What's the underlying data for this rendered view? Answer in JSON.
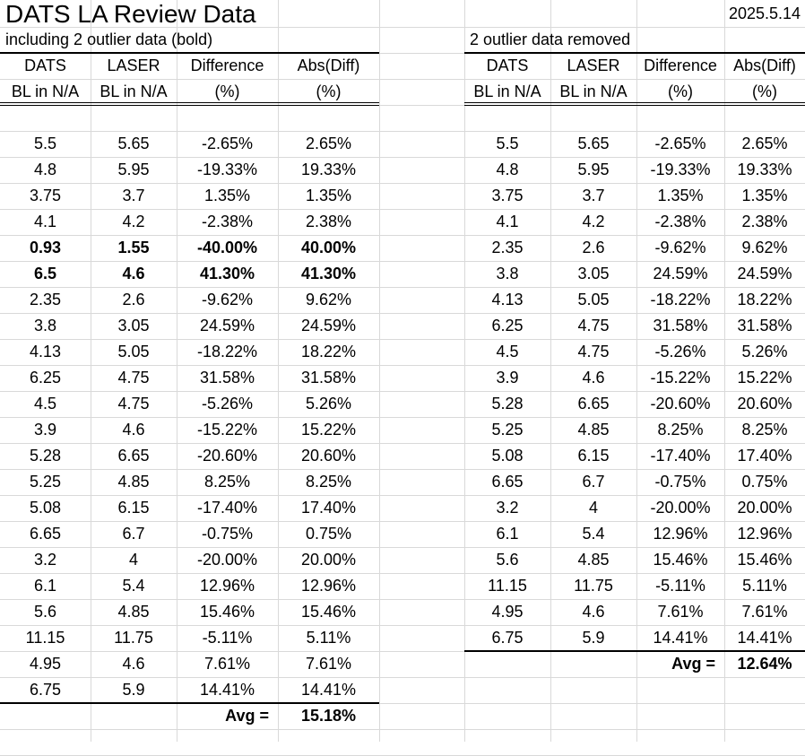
{
  "title": "DATS LA Review Data",
  "date": "2025.5.14",
  "left": {
    "subtitle": "including 2 outlier data (bold)",
    "headers": [
      [
        "DATS",
        "BL in N/A"
      ],
      [
        "LASER",
        "BL in N/A"
      ],
      [
        "Difference",
        "(%)"
      ],
      [
        "Abs(Diff)",
        "(%)"
      ]
    ],
    "rows": [
      [
        "5.5",
        "5.65",
        "-2.65%",
        "2.65%"
      ],
      [
        "4.8",
        "5.95",
        "-19.33%",
        "19.33%"
      ],
      [
        "3.75",
        "3.7",
        "1.35%",
        "1.35%"
      ],
      [
        "4.1",
        "4.2",
        "-2.38%",
        "2.38%"
      ],
      [
        "0.93",
        "1.55",
        "-40.00%",
        "40.00%"
      ],
      [
        "6.5",
        "4.6",
        "41.30%",
        "41.30%"
      ],
      [
        "2.35",
        "2.6",
        "-9.62%",
        "9.62%"
      ],
      [
        "3.8",
        "3.05",
        "24.59%",
        "24.59%"
      ],
      [
        "4.13",
        "5.05",
        "-18.22%",
        "18.22%"
      ],
      [
        "6.25",
        "4.75",
        "31.58%",
        "31.58%"
      ],
      [
        "4.5",
        "4.75",
        "-5.26%",
        "5.26%"
      ],
      [
        "3.9",
        "4.6",
        "-15.22%",
        "15.22%"
      ],
      [
        "5.28",
        "6.65",
        "-20.60%",
        "20.60%"
      ],
      [
        "5.25",
        "4.85",
        "8.25%",
        "8.25%"
      ],
      [
        "5.08",
        "6.15",
        "-17.40%",
        "17.40%"
      ],
      [
        "6.65",
        "6.7",
        "-0.75%",
        "0.75%"
      ],
      [
        "3.2",
        "4",
        "-20.00%",
        "20.00%"
      ],
      [
        "6.1",
        "5.4",
        "12.96%",
        "12.96%"
      ],
      [
        "5.6",
        "4.85",
        "15.46%",
        "15.46%"
      ],
      [
        "11.15",
        "11.75",
        "-5.11%",
        "5.11%"
      ],
      [
        "4.95",
        "4.6",
        "7.61%",
        "7.61%"
      ],
      [
        "6.75",
        "5.9",
        "14.41%",
        "14.41%"
      ]
    ],
    "bold_rows": [
      4,
      5
    ],
    "avg_label": "Avg =",
    "avg_value": "15.18%"
  },
  "right": {
    "subtitle": "2 outlier data removed",
    "headers": [
      [
        "DATS",
        "BL in N/A"
      ],
      [
        "LASER",
        "BL in N/A"
      ],
      [
        "Difference",
        "(%)"
      ],
      [
        "Abs(Diff)",
        "(%)"
      ]
    ],
    "rows": [
      [
        "5.5",
        "5.65",
        "-2.65%",
        "2.65%"
      ],
      [
        "4.8",
        "5.95",
        "-19.33%",
        "19.33%"
      ],
      [
        "3.75",
        "3.7",
        "1.35%",
        "1.35%"
      ],
      [
        "4.1",
        "4.2",
        "-2.38%",
        "2.38%"
      ],
      [
        "2.35",
        "2.6",
        "-9.62%",
        "9.62%"
      ],
      [
        "3.8",
        "3.05",
        "24.59%",
        "24.59%"
      ],
      [
        "4.13",
        "5.05",
        "-18.22%",
        "18.22%"
      ],
      [
        "6.25",
        "4.75",
        "31.58%",
        "31.58%"
      ],
      [
        "4.5",
        "4.75",
        "-5.26%",
        "5.26%"
      ],
      [
        "3.9",
        "4.6",
        "-15.22%",
        "15.22%"
      ],
      [
        "5.28",
        "6.65",
        "-20.60%",
        "20.60%"
      ],
      [
        "5.25",
        "4.85",
        "8.25%",
        "8.25%"
      ],
      [
        "5.08",
        "6.15",
        "-17.40%",
        "17.40%"
      ],
      [
        "6.65",
        "6.7",
        "-0.75%",
        "0.75%"
      ],
      [
        "3.2",
        "4",
        "-20.00%",
        "20.00%"
      ],
      [
        "6.1",
        "5.4",
        "12.96%",
        "12.96%"
      ],
      [
        "5.6",
        "4.85",
        "15.46%",
        "15.46%"
      ],
      [
        "11.15",
        "11.75",
        "-5.11%",
        "5.11%"
      ],
      [
        "4.95",
        "4.6",
        "7.61%",
        "7.61%"
      ],
      [
        "6.75",
        "5.9",
        "14.41%",
        "14.41%"
      ]
    ],
    "bold_rows": [],
    "avg_label": "Avg =",
    "avg_value": "12.64%"
  }
}
